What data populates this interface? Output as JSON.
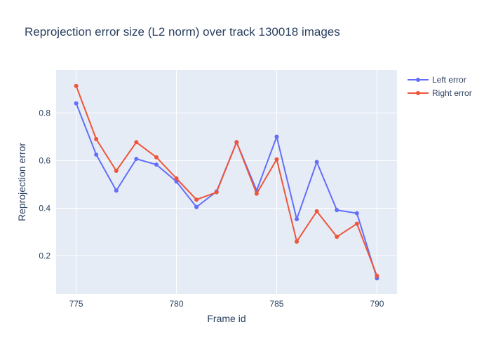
{
  "chart_data": {
    "type": "line",
    "title": "Reprojection error size (L2 norm) over track 130018 images",
    "xlabel": "Frame id",
    "ylabel": "Reprojection error",
    "xlim": [
      774,
      791
    ],
    "ylim": [
      0.04,
      0.98
    ],
    "x_ticks": [
      775,
      780,
      785,
      790
    ],
    "y_ticks": [
      0.2,
      0.4,
      0.6,
      0.8
    ],
    "grid": true,
    "legend_position": "top-right",
    "x": [
      775,
      776,
      777,
      778,
      779,
      780,
      781,
      782,
      783,
      784,
      785,
      786,
      787,
      788,
      789,
      790
    ],
    "series": [
      {
        "name": "Left error",
        "color": "#636efa",
        "values": [
          0.84,
          0.625,
          0.474,
          0.607,
          0.583,
          0.512,
          0.405,
          0.47,
          0.677,
          0.474,
          0.7,
          0.354,
          0.594,
          0.392,
          0.379,
          0.106
        ]
      },
      {
        "name": "Right error",
        "color": "#ef553b",
        "values": [
          0.913,
          0.69,
          0.557,
          0.677,
          0.614,
          0.525,
          0.436,
          0.467,
          0.677,
          0.461,
          0.605,
          0.26,
          0.387,
          0.28,
          0.335,
          0.116
        ]
      }
    ],
    "plot_background": "#e5ecf6",
    "grid_color": "#ffffff"
  }
}
